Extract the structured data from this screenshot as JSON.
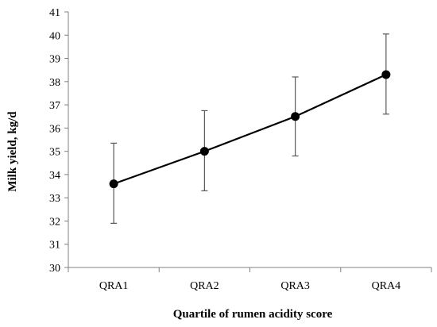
{
  "chart_data": {
    "type": "line",
    "categories": [
      "QRA1",
      "QRA2",
      "QRA3",
      "QRA4"
    ],
    "series": [
      {
        "values": [
          33.6,
          35.0,
          36.5,
          38.3
        ],
        "error_upper": [
          35.35,
          36.75,
          38.2,
          40.05
        ],
        "error_lower": [
          31.9,
          33.3,
          34.8,
          36.6
        ]
      }
    ],
    "title": "",
    "xlabel": "Quartile of rumen acidity score",
    "ylabel": "Milk yield, kg/d",
    "ylim": [
      30,
      41
    ],
    "yticks": [
      "30",
      "31",
      "32",
      "33",
      "34",
      "35",
      "36",
      "37",
      "38",
      "39",
      "40",
      "41"
    ],
    "grid": false,
    "legend": "none",
    "colors": {
      "line": "#000000",
      "marker": "#000000",
      "error_bar": "#595959",
      "axis": "#808080"
    }
  }
}
